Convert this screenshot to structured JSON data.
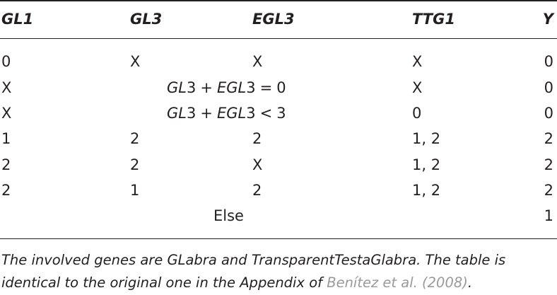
{
  "table": {
    "headers": {
      "gl1": {
        "italic": "GL",
        "num": "1"
      },
      "gl3": {
        "italic": "GL",
        "num": "3"
      },
      "egl3": {
        "italic": "EGL",
        "num": "3"
      },
      "ttg1": {
        "italic": "TTG",
        "num": "1"
      },
      "y": "Y"
    },
    "rows": [
      {
        "gl1": "0",
        "gl3": "X",
        "egl3": "X",
        "ttg1": "X",
        "y": "0"
      },
      {
        "gl1": "X",
        "formula": {
          "a": "GL",
          "an": "3",
          "op1": "+",
          "b": "EGL",
          "bn": "3",
          "op2": "=",
          "rhs": "0"
        },
        "ttg1": "X",
        "y": "0"
      },
      {
        "gl1": "X",
        "formula": {
          "a": "GL",
          "an": "3",
          "op1": "+",
          "b": "EGL",
          "bn": "3",
          "op2": "<",
          "rhs": "3"
        },
        "ttg1": "0",
        "y": "0"
      },
      {
        "gl1": "1",
        "gl3": "2",
        "egl3": "2",
        "ttg1": "1, 2",
        "y": "2"
      },
      {
        "gl1": "2",
        "gl3": "2",
        "egl3": "X",
        "ttg1": "1, 2",
        "y": "2"
      },
      {
        "gl1": "2",
        "gl3": "1",
        "egl3": "2",
        "ttg1": "1, 2",
        "y": "2"
      }
    ],
    "else_row": {
      "label": "Else",
      "y": "1"
    }
  },
  "caption": {
    "text1": "The involved genes are GLabra and TransparentTestaGlabra. The table is identical to the original one in the Appendix of ",
    "citation": "Benítez et al. (2008)",
    "text2": "."
  },
  "colors": {
    "text": "#231f20",
    "citation_link": "#9a9a9a"
  }
}
